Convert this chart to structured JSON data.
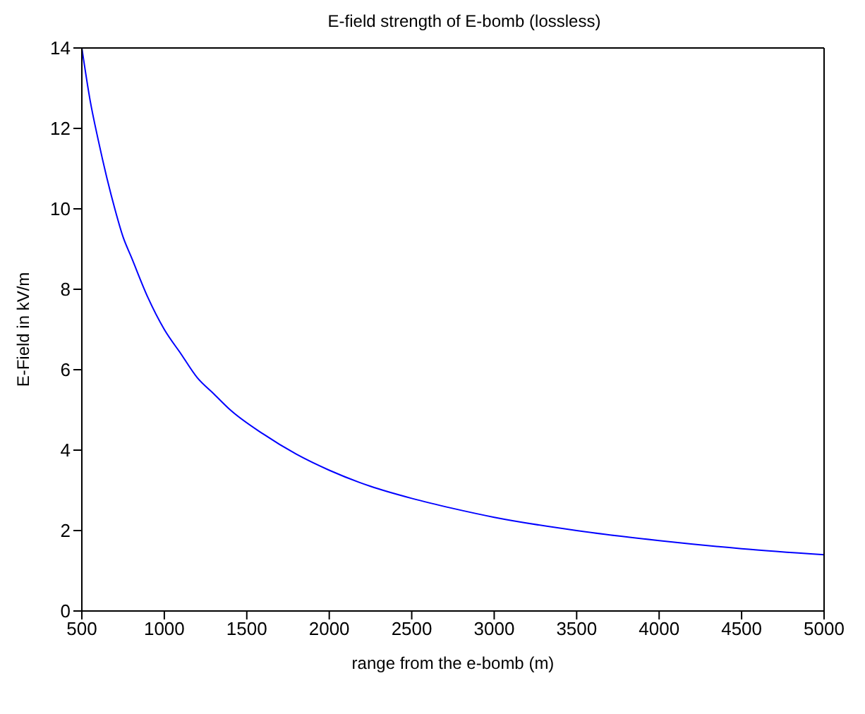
{
  "chart_data": {
    "type": "line",
    "title": "E-field strength of E-bomb (lossless)",
    "xlabel": "range from the e-bomb (m)",
    "ylabel": "E-Field in kV/m",
    "x": [
      500,
      550,
      600,
      650,
      700,
      750,
      800,
      900,
      1000,
      1100,
      1200,
      1300,
      1400,
      1600,
      1800,
      2000,
      2250,
      2500,
      2750,
      3000,
      3500,
      4000,
      4500,
      5000
    ],
    "series": [
      {
        "color": "#0000ff",
        "values": [
          14,
          12.7,
          11.7,
          10.8,
          10,
          9.3,
          8.8,
          7.8,
          7,
          6.4,
          5.8,
          5.4,
          5,
          4.4,
          3.9,
          3.5,
          3.1,
          2.8,
          2.55,
          2.33,
          2,
          1.75,
          1.55,
          1.4
        ]
      }
    ],
    "xlim": [
      500,
      5000
    ],
    "xticks": [
      500,
      1000,
      1500,
      2000,
      2500,
      3000,
      3500,
      4000,
      4500,
      5000
    ],
    "ylim": [
      0,
      14
    ],
    "yticks": [
      0,
      2,
      4,
      6,
      8,
      10,
      12,
      14
    ],
    "marker": "none",
    "line_style": "solid"
  }
}
